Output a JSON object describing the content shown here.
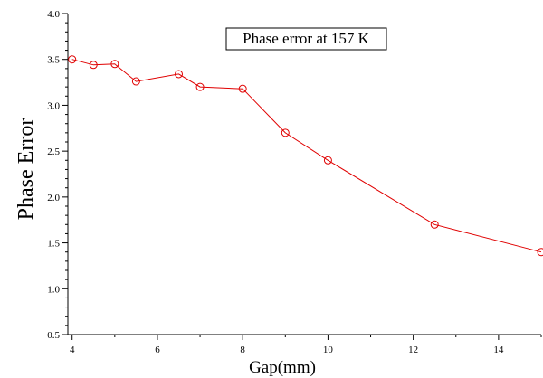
{
  "chart_data": {
    "type": "line",
    "title": "",
    "xlabel": "Gap(mm)",
    "ylabel": "Phase Error",
    "xlim": [
      3.9,
      15.0
    ],
    "ylim": [
      0.5,
      4.0
    ],
    "x_ticks": [
      4,
      6,
      8,
      10,
      12,
      14
    ],
    "y_ticks": [
      0.5,
      1.0,
      1.5,
      2.0,
      2.5,
      3.0,
      3.5,
      4.0
    ],
    "grid": false,
    "legend": {
      "text": "Phase error at 157 K",
      "placement": "top-center"
    },
    "series": [
      {
        "color": "#e00000",
        "marker": "open-circle",
        "x": [
          4,
          4.5,
          5,
          5.5,
          6.5,
          7,
          8,
          9,
          10,
          12.5,
          15
        ],
        "y": [
          3.5,
          3.44,
          3.45,
          3.26,
          3.34,
          3.2,
          3.18,
          2.7,
          2.4,
          1.7,
          1.4
        ]
      }
    ]
  }
}
